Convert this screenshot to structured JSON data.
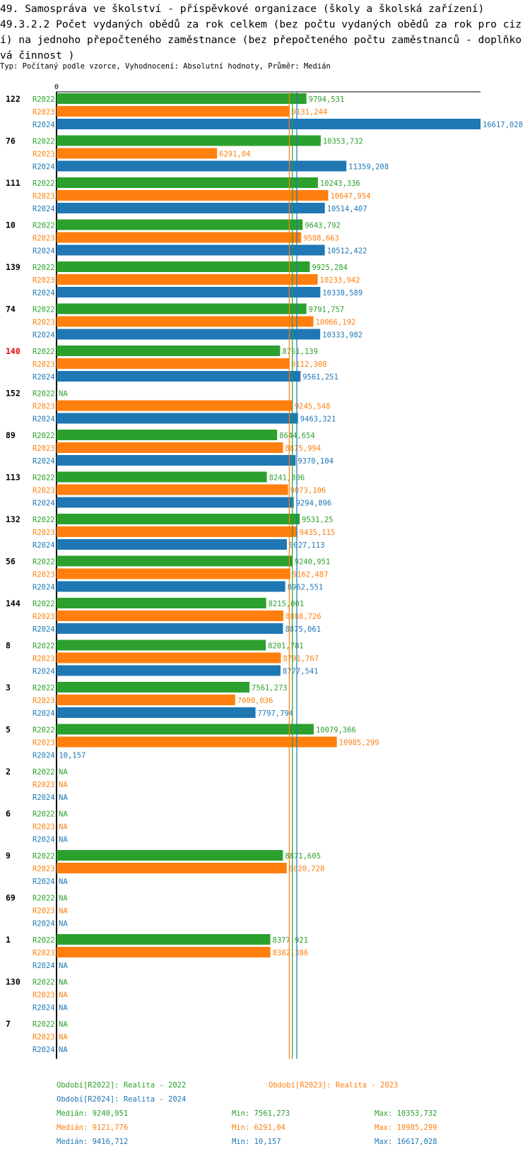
{
  "title_line1": "49. Samospráva ve školství - příspěvkové organizace (školy a školská zařízení)",
  "title_line2": "49.3.2.2 Počet vydaných obědů za rok celkem (bez počtu vydaných obědů za rok pro cizí) na jednoho přepočteného zaměstnance (bez přepočteného počtu zaměstnanců - doplňková činnost )",
  "subtitle": "Typ: Počítaný podle vzorce, Vyhodnocení: Absolutní hodnoty, Průměr: Medián",
  "colors": {
    "R2022": "#2ca02c",
    "R2023": "#ff7f0e",
    "R2024": "#1f77b4",
    "highlight": "#e8000b"
  },
  "chart_data": {
    "type": "bar",
    "orientation": "horizontal",
    "axis_zero_label": "0",
    "xlim": [
      0,
      16617.028
    ],
    "series_names": [
      "R2022",
      "R2023",
      "R2024"
    ],
    "highlight_group": "140",
    "groups": [
      {
        "id": "122",
        "values": [
          9794.531,
          9131.244,
          16617.028
        ],
        "labels": [
          "9794,531",
          "9131,244",
          "16617,028"
        ]
      },
      {
        "id": "76",
        "values": [
          10353.732,
          6291.04,
          11359.208
        ],
        "labels": [
          "10353,732",
          "6291,04",
          "11359,208"
        ]
      },
      {
        "id": "111",
        "values": [
          10243.336,
          10647.954,
          10514.407
        ],
        "labels": [
          "10243,336",
          "10647,954",
          "10514,407"
        ]
      },
      {
        "id": "10",
        "values": [
          9643.792,
          9588.663,
          10512.422
        ],
        "labels": [
          "9643,792",
          "9588,663",
          "10512,422"
        ]
      },
      {
        "id": "139",
        "values": [
          9925.284,
          10233.942,
          10338.589
        ],
        "labels": [
          "9925,284",
          "10233,942",
          "10338,589"
        ]
      },
      {
        "id": "74",
        "values": [
          9791.757,
          10066.192,
          10333.982
        ],
        "labels": [
          "9791,757",
          "10066,192",
          "10333,982"
        ]
      },
      {
        "id": "140",
        "values": [
          8761.139,
          9112.308,
          9561.251
        ],
        "labels": [
          "8761,139",
          "9112,308",
          "9561,251"
        ]
      },
      {
        "id": "152",
        "values": [
          null,
          9245.548,
          9463.321
        ],
        "labels": [
          "NA",
          "9245,548",
          "9463,321"
        ]
      },
      {
        "id": "89",
        "values": [
          8644.654,
          8875.994,
          9370.104
        ],
        "labels": [
          "8644,654",
          "8875,994",
          "9370,104"
        ]
      },
      {
        "id": "113",
        "values": [
          8241.806,
          9073.106,
          9294.896
        ],
        "labels": [
          "8241,806",
          "9073,106",
          "9294,896"
        ]
      },
      {
        "id": "132",
        "values": [
          9531.25,
          9435.115,
          9027.113
        ],
        "labels": [
          "9531,25",
          "9435,115",
          "9027,113"
        ]
      },
      {
        "id": "56",
        "values": [
          9240.951,
          9162.487,
          8962.551
        ],
        "labels": [
          "9240,951",
          "9162,487",
          "8962,551"
        ]
      },
      {
        "id": "144",
        "values": [
          8215.001,
          8888.726,
          8875.061
        ],
        "labels": [
          "8215,001",
          "8888,726",
          "8875,061"
        ]
      },
      {
        "id": "8",
        "values": [
          8201.781,
          8791.767,
          8777.541
        ],
        "labels": [
          "8201,781",
          "8791,767",
          "8777,541"
        ]
      },
      {
        "id": "3",
        "values": [
          7561.273,
          7000.036,
          7797.794
        ],
        "labels": [
          "7561,273",
          "7000,036",
          "7797,794"
        ]
      },
      {
        "id": "5",
        "values": [
          10079.366,
          10985.299,
          10.157
        ],
        "labels": [
          "10079,366",
          "10985,299",
          "10,157"
        ]
      },
      {
        "id": "2",
        "values": [
          null,
          null,
          null
        ],
        "labels": [
          "NA",
          "NA",
          "NA"
        ]
      },
      {
        "id": "6",
        "values": [
          null,
          null,
          null
        ],
        "labels": [
          "NA",
          "NA",
          "NA"
        ]
      },
      {
        "id": "9",
        "values": [
          8871.605,
          9020.728,
          null
        ],
        "labels": [
          "8871,605",
          "9020,728",
          "NA"
        ]
      },
      {
        "id": "69",
        "values": [
          null,
          null,
          null
        ],
        "labels": [
          "NA",
          "NA",
          "NA"
        ]
      },
      {
        "id": "1",
        "values": [
          8377.921,
          8382.386,
          null
        ],
        "labels": [
          "8377,921",
          "8382,386",
          "NA"
        ]
      },
      {
        "id": "130",
        "values": [
          null,
          null,
          null
        ],
        "labels": [
          "NA",
          "NA",
          "NA"
        ]
      },
      {
        "id": "7",
        "values": [
          null,
          null,
          null
        ],
        "labels": [
          "NA",
          "NA",
          "NA"
        ]
      }
    ],
    "medians": [
      9240.951,
      9121.776,
      9416.712
    ]
  },
  "legend": {
    "period_2022": "Období[R2022]: Realita - 2022",
    "period_2023": "Období[R2023]: Realita - 2023",
    "period_2024": "Období[R2024]: Realita - 2024",
    "stats": [
      {
        "median": "Medián: 9240,951",
        "min": "Min: 7561,273",
        "max": "Max: 10353,732"
      },
      {
        "median": "Medián: 9121,776",
        "min": "Min: 6291,04",
        "max": "Max: 10985,299"
      },
      {
        "median": "Medián: 9416,712",
        "min": "Min: 10,157",
        "max": "Max: 16617,028"
      }
    ]
  }
}
